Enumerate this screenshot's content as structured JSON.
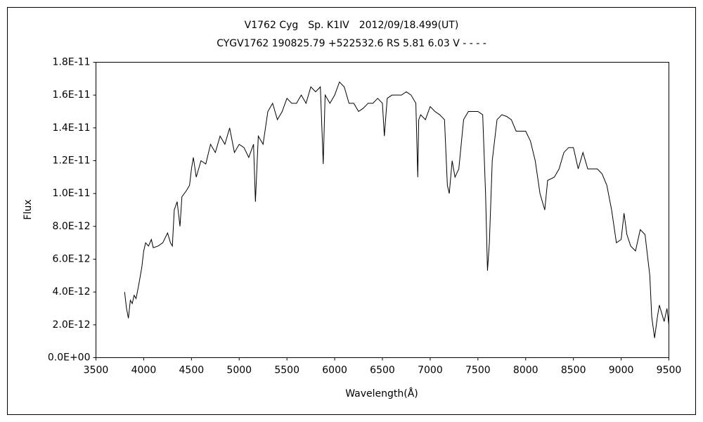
{
  "chart_data": {
    "type": "line",
    "title": "V1762 Cyg　Sp. K1IV　2012/09/18.499(UT)",
    "subtitle": "CYGV1762 190825.79 +522532.6 RS 5.81 6.03 V - - - -",
    "x_label": "Wavelength(Å)",
    "y_label": "Flux",
    "xlim": [
      3500,
      9500
    ],
    "xticks": [
      3500,
      4000,
      4500,
      5000,
      5500,
      6000,
      6500,
      7000,
      7500,
      8000,
      8500,
      9000,
      9500
    ],
    "ylim": [
      0,
      1.8e-11
    ],
    "yticks": [
      {
        "value": 0,
        "label": "0.0E+00"
      },
      {
        "value": 2e-12,
        "label": "2.0E-12"
      },
      {
        "value": 4e-12,
        "label": "4.0E-12"
      },
      {
        "value": 6e-12,
        "label": "6.0E-12"
      },
      {
        "value": 8e-12,
        "label": "8.0E-12"
      },
      {
        "value": 1e-11,
        "label": "1.0E-11"
      },
      {
        "value": 1.2e-11,
        "label": "1.2E-11"
      },
      {
        "value": 1.4e-11,
        "label": "1.4E-11"
      },
      {
        "value": 1.6e-11,
        "label": "1.6E-11"
      },
      {
        "value": 1.8e-11,
        "label": "1.8E-11"
      }
    ],
    "grid": false,
    "color": "#000000",
    "x": [
      3800,
      3820,
      3840,
      3860,
      3880,
      3900,
      3920,
      3950,
      3980,
      4000,
      4020,
      4050,
      4080,
      4100,
      4150,
      4200,
      4250,
      4280,
      4300,
      4320,
      4350,
      4380,
      4400,
      4450,
      4480,
      4500,
      4520,
      4550,
      4600,
      4650,
      4700,
      4750,
      4800,
      4850,
      4900,
      4950,
      5000,
      5050,
      5100,
      5150,
      5170,
      5200,
      5250,
      5300,
      5350,
      5400,
      5450,
      5500,
      5550,
      5600,
      5650,
      5700,
      5750,
      5800,
      5850,
      5880,
      5900,
      5950,
      6000,
      6050,
      6100,
      6150,
      6200,
      6250,
      6300,
      6350,
      6400,
      6450,
      6500,
      6520,
      6550,
      6600,
      6650,
      6700,
      6750,
      6800,
      6850,
      6870,
      6880,
      6900,
      6950,
      7000,
      7050,
      7100,
      7150,
      7180,
      7200,
      7230,
      7260,
      7300,
      7350,
      7400,
      7450,
      7500,
      7550,
      7580,
      7600,
      7620,
      7650,
      7700,
      7750,
      7800,
      7850,
      7900,
      7950,
      8000,
      8050,
      8100,
      8150,
      8200,
      8230,
      8300,
      8350,
      8400,
      8450,
      8500,
      8550,
      8600,
      8650,
      8700,
      8750,
      8800,
      8850,
      8900,
      8950,
      9000,
      9030,
      9060,
      9100,
      9150,
      9200,
      9250,
      9300,
      9320,
      9350,
      9380,
      9400,
      9450,
      9480,
      9500
    ],
    "values": [
      4e-12,
      3e-12,
      2.4e-12,
      3.5e-12,
      3.3e-12,
      3.8e-12,
      3.6e-12,
      4.5e-12,
      5.5e-12,
      6.5e-12,
      7e-12,
      6.8e-12,
      7.2e-12,
      6.7e-12,
      6.8e-12,
      7e-12,
      7.6e-12,
      7e-12,
      6.8e-12,
      9e-12,
      9.5e-12,
      8e-12,
      9.8e-12,
      1.02e-11,
      1.05e-11,
      1.15e-11,
      1.22e-11,
      1.1e-11,
      1.2e-11,
      1.18e-11,
      1.3e-11,
      1.25e-11,
      1.35e-11,
      1.3e-11,
      1.4e-11,
      1.25e-11,
      1.3e-11,
      1.28e-11,
      1.22e-11,
      1.3e-11,
      9.5e-12,
      1.35e-11,
      1.3e-11,
      1.5e-11,
      1.55e-11,
      1.45e-11,
      1.5e-11,
      1.58e-11,
      1.55e-11,
      1.55e-11,
      1.6e-11,
      1.55e-11,
      1.65e-11,
      1.62e-11,
      1.65e-11,
      1.18e-11,
      1.6e-11,
      1.55e-11,
      1.6e-11,
      1.68e-11,
      1.65e-11,
      1.55e-11,
      1.55e-11,
      1.5e-11,
      1.52e-11,
      1.55e-11,
      1.55e-11,
      1.58e-11,
      1.55e-11,
      1.35e-11,
      1.58e-11,
      1.6e-11,
      1.6e-11,
      1.6e-11,
      1.62e-11,
      1.6e-11,
      1.55e-11,
      1.1e-11,
      1.45e-11,
      1.48e-11,
      1.45e-11,
      1.53e-11,
      1.5e-11,
      1.48e-11,
      1.45e-11,
      1.05e-11,
      1e-11,
      1.2e-11,
      1.1e-11,
      1.15e-11,
      1.45e-11,
      1.5e-11,
      1.5e-11,
      1.5e-11,
      1.48e-11,
      1e-11,
      5.3e-12,
      7e-12,
      1.2e-11,
      1.45e-11,
      1.48e-11,
      1.47e-11,
      1.45e-11,
      1.38e-11,
      1.38e-11,
      1.38e-11,
      1.32e-11,
      1.2e-11,
      1e-11,
      9e-12,
      1.08e-11,
      1.1e-11,
      1.15e-11,
      1.25e-11,
      1.28e-11,
      1.28e-11,
      1.15e-11,
      1.25e-11,
      1.15e-11,
      1.15e-11,
      1.15e-11,
      1.12e-11,
      1.05e-11,
      9e-12,
      7e-12,
      7.2e-12,
      8.8e-12,
      7.5e-12,
      6.8e-12,
      6.5e-12,
      7.8e-12,
      7.5e-12,
      5e-12,
      2.5e-12,
      1.2e-12,
      2.5e-12,
      3.2e-12,
      2.2e-12,
      3e-12,
      2e-12
    ]
  }
}
